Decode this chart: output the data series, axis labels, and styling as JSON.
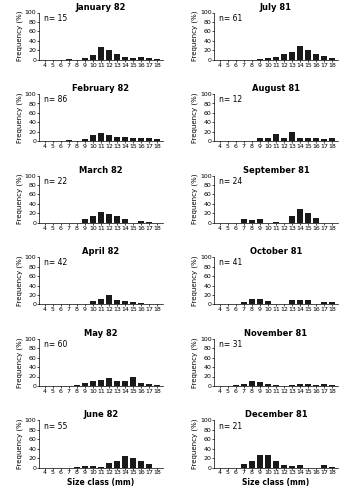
{
  "panels": [
    {
      "title": "January 82",
      "n": 15,
      "values": [
        0,
        0,
        0,
        2,
        0,
        5,
        10,
        27,
        20,
        13,
        7,
        5,
        7,
        3,
        2
      ]
    },
    {
      "title": "February 82",
      "n": 86,
      "values": [
        0,
        0,
        0,
        2,
        0,
        5,
        13,
        17,
        13,
        10,
        10,
        8,
        8,
        8,
        5
      ]
    },
    {
      "title": "March 82",
      "n": 22,
      "values": [
        0,
        0,
        0,
        0,
        0,
        9,
        14,
        23,
        18,
        14,
        9,
        0,
        5,
        2,
        0
      ]
    },
    {
      "title": "April 82",
      "n": 42,
      "values": [
        0,
        2,
        2,
        2,
        2,
        0,
        7,
        12,
        19,
        10,
        7,
        5,
        3,
        2,
        0
      ]
    },
    {
      "title": "May 82",
      "n": 60,
      "values": [
        0,
        0,
        0,
        0,
        2,
        7,
        10,
        12,
        17,
        10,
        10,
        20,
        7,
        5,
        2
      ]
    },
    {
      "title": "June 82",
      "n": 55,
      "values": [
        0,
        0,
        0,
        0,
        2,
        3,
        3,
        2,
        10,
        13,
        25,
        20,
        13,
        7,
        0
      ]
    },
    {
      "title": "July 81",
      "n": 61,
      "values": [
        0,
        0,
        0,
        0,
        0,
        2,
        3,
        7,
        12,
        17,
        30,
        20,
        13,
        8,
        5
      ]
    },
    {
      "title": "August 81",
      "n": 12,
      "values": [
        0,
        0,
        0,
        0,
        0,
        8,
        8,
        15,
        8,
        20,
        8,
        8,
        8,
        5,
        8
      ]
    },
    {
      "title": "September 81",
      "n": 24,
      "values": [
        0,
        0,
        0,
        8,
        7,
        8,
        0,
        2,
        0,
        15,
        30,
        22,
        10,
        0,
        0
      ]
    },
    {
      "title": "October 81",
      "n": 41,
      "values": [
        0,
        2,
        0,
        5,
        12,
        12,
        7,
        0,
        2,
        10,
        10,
        10,
        0,
        5,
        5
      ]
    },
    {
      "title": "November 81",
      "n": 31,
      "values": [
        0,
        0,
        2,
        5,
        10,
        8,
        5,
        2,
        0,
        2,
        5,
        5,
        2,
        5,
        2
      ]
    },
    {
      "title": "December 81",
      "n": 21,
      "values": [
        0,
        0,
        0,
        7,
        13,
        27,
        27,
        13,
        5,
        3,
        5,
        0,
        0,
        5,
        2
      ]
    }
  ],
  "size_classes": [
    4,
    5,
    6,
    7,
    8,
    9,
    10,
    11,
    12,
    13,
    14,
    15,
    16,
    17,
    18
  ],
  "ylabel": "Frequency (%)",
  "xlabel": "Size class (mm)",
  "ylim": [
    0,
    100
  ],
  "yticks": [
    0,
    20,
    40,
    60,
    80,
    100
  ],
  "bar_color": "#1a1a1a",
  "bg_color": "#ffffff",
  "title_fontsize": 6.0,
  "label_fontsize": 5.0,
  "tick_fontsize": 4.5,
  "n_fontsize": 5.5
}
